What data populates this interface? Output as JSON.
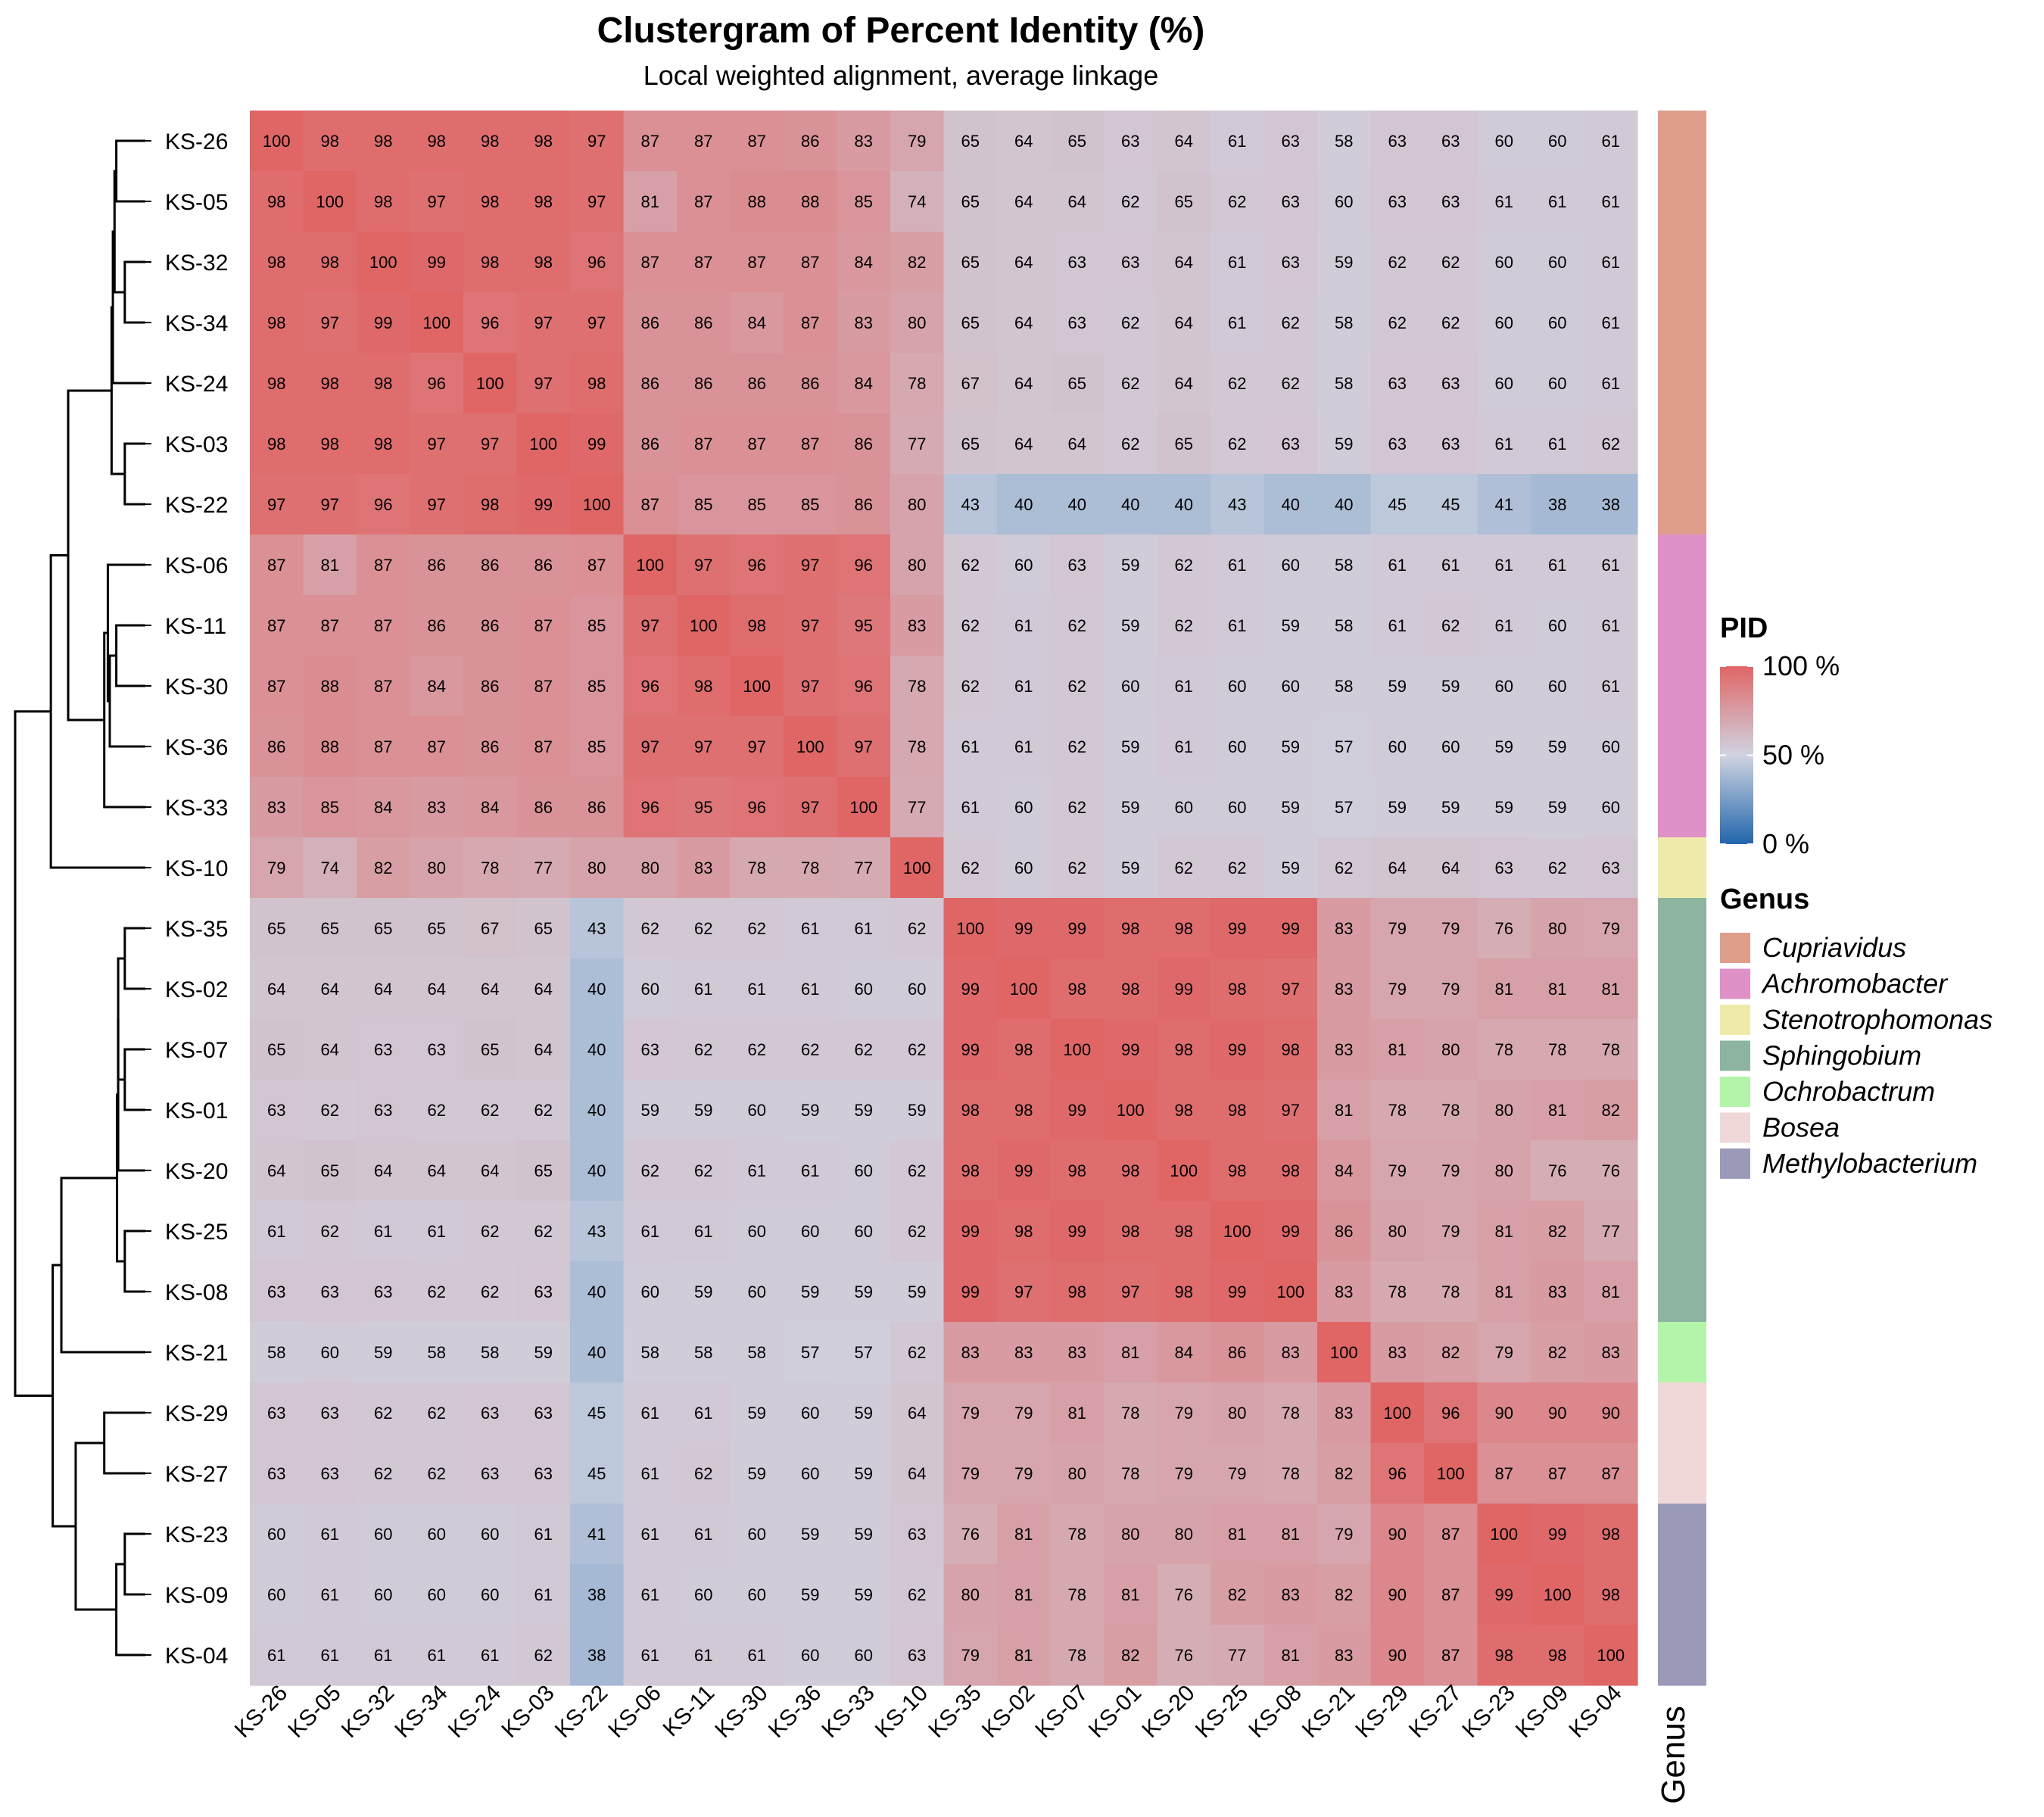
{
  "chart_data": {
    "type": "heatmap",
    "title": "Clustergram of Percent Identity (%)",
    "subtitle": "Local weighted alignment, average linkage",
    "labels": [
      "KS-26",
      "KS-05",
      "KS-32",
      "KS-34",
      "KS-24",
      "KS-03",
      "KS-22",
      "KS-06",
      "KS-11",
      "KS-30",
      "KS-36",
      "KS-33",
      "KS-10",
      "KS-35",
      "KS-02",
      "KS-07",
      "KS-01",
      "KS-20",
      "KS-25",
      "KS-08",
      "KS-21",
      "KS-29",
      "KS-27",
      "KS-23",
      "KS-09",
      "KS-04"
    ],
    "values": [
      [
        100,
        98,
        98,
        98,
        98,
        98,
        97,
        87,
        87,
        87,
        86,
        83,
        79,
        65,
        64,
        65,
        63,
        64,
        61,
        63,
        58,
        63,
        63,
        60,
        60,
        61
      ],
      [
        98,
        100,
        98,
        97,
        98,
        98,
        97,
        81,
        87,
        88,
        88,
        85,
        74,
        65,
        64,
        64,
        62,
        65,
        62,
        63,
        60,
        63,
        63,
        61,
        61,
        61
      ],
      [
        98,
        98,
        100,
        99,
        98,
        98,
        96,
        87,
        87,
        87,
        87,
        84,
        82,
        65,
        64,
        63,
        63,
        64,
        61,
        63,
        59,
        62,
        62,
        60,
        60,
        61
      ],
      [
        98,
        97,
        99,
        100,
        96,
        97,
        97,
        86,
        86,
        84,
        87,
        83,
        80,
        65,
        64,
        63,
        62,
        64,
        61,
        62,
        58,
        62,
        62,
        60,
        60,
        61
      ],
      [
        98,
        98,
        98,
        96,
        100,
        97,
        98,
        86,
        86,
        86,
        86,
        84,
        78,
        67,
        64,
        65,
        62,
        64,
        62,
        62,
        58,
        63,
        63,
        60,
        60,
        61
      ],
      [
        98,
        98,
        98,
        97,
        97,
        100,
        99,
        86,
        87,
        87,
        87,
        86,
        77,
        65,
        64,
        64,
        62,
        65,
        62,
        63,
        59,
        63,
        63,
        61,
        61,
        62
      ],
      [
        97,
        97,
        96,
        97,
        98,
        99,
        100,
        87,
        85,
        85,
        85,
        86,
        80,
        43,
        40,
        40,
        40,
        40,
        43,
        40,
        40,
        45,
        45,
        41,
        38,
        38
      ],
      [
        87,
        81,
        87,
        86,
        86,
        86,
        87,
        100,
        97,
        96,
        97,
        96,
        80,
        62,
        60,
        63,
        59,
        62,
        61,
        60,
        58,
        61,
        61,
        61,
        61,
        61
      ],
      [
        87,
        87,
        87,
        86,
        86,
        87,
        85,
        97,
        100,
        98,
        97,
        95,
        83,
        62,
        61,
        62,
        59,
        62,
        61,
        59,
        58,
        61,
        62,
        61,
        60,
        61
      ],
      [
        87,
        88,
        87,
        84,
        86,
        87,
        85,
        96,
        98,
        100,
        97,
        96,
        78,
        62,
        61,
        62,
        60,
        61,
        60,
        60,
        58,
        59,
        59,
        60,
        60,
        61
      ],
      [
        86,
        88,
        87,
        87,
        86,
        87,
        85,
        97,
        97,
        97,
        100,
        97,
        78,
        61,
        61,
        62,
        59,
        61,
        60,
        59,
        57,
        60,
        60,
        59,
        59,
        60
      ],
      [
        83,
        85,
        84,
        83,
        84,
        86,
        86,
        96,
        95,
        96,
        97,
        100,
        77,
        61,
        60,
        62,
        59,
        60,
        60,
        59,
        57,
        59,
        59,
        59,
        59,
        60
      ],
      [
        79,
        74,
        82,
        80,
        78,
        77,
        80,
        80,
        83,
        78,
        78,
        77,
        100,
        62,
        60,
        62,
        59,
        62,
        62,
        59,
        62,
        64,
        64,
        63,
        62,
        63
      ],
      [
        65,
        65,
        65,
        65,
        67,
        65,
        43,
        62,
        62,
        62,
        61,
        61,
        62,
        100,
        99,
        99,
        98,
        98,
        99,
        99,
        83,
        79,
        79,
        76,
        80,
        79
      ],
      [
        64,
        64,
        64,
        64,
        64,
        64,
        40,
        60,
        61,
        61,
        61,
        60,
        60,
        99,
        100,
        98,
        98,
        99,
        98,
        97,
        83,
        79,
        79,
        81,
        81,
        81
      ],
      [
        65,
        64,
        63,
        63,
        65,
        64,
        40,
        63,
        62,
        62,
        62,
        62,
        62,
        99,
        98,
        100,
        99,
        98,
        99,
        98,
        83,
        81,
        80,
        78,
        78,
        78
      ],
      [
        63,
        62,
        63,
        62,
        62,
        62,
        40,
        59,
        59,
        60,
        59,
        59,
        59,
        98,
        98,
        99,
        100,
        98,
        98,
        97,
        81,
        78,
        78,
        80,
        81,
        82
      ],
      [
        64,
        65,
        64,
        64,
        64,
        65,
        40,
        62,
        62,
        61,
        61,
        60,
        62,
        98,
        99,
        98,
        98,
        100,
        98,
        98,
        84,
        79,
        79,
        80,
        76,
        76
      ],
      [
        61,
        62,
        61,
        61,
        62,
        62,
        43,
        61,
        61,
        60,
        60,
        60,
        62,
        99,
        98,
        99,
        98,
        98,
        100,
        99,
        86,
        80,
        79,
        81,
        82,
        77
      ],
      [
        63,
        63,
        63,
        62,
        62,
        63,
        40,
        60,
        59,
        60,
        59,
        59,
        59,
        99,
        97,
        98,
        97,
        98,
        99,
        100,
        83,
        78,
        78,
        81,
        83,
        81
      ],
      [
        58,
        60,
        59,
        58,
        58,
        59,
        40,
        58,
        58,
        58,
        57,
        57,
        62,
        83,
        83,
        83,
        81,
        84,
        86,
        83,
        100,
        83,
        82,
        79,
        82,
        83
      ],
      [
        63,
        63,
        62,
        62,
        63,
        63,
        45,
        61,
        61,
        59,
        60,
        59,
        64,
        79,
        79,
        81,
        78,
        79,
        80,
        78,
        83,
        100,
        96,
        90,
        90,
        90
      ],
      [
        63,
        63,
        62,
        62,
        63,
        63,
        45,
        61,
        62,
        59,
        60,
        59,
        64,
        79,
        79,
        80,
        78,
        79,
        79,
        78,
        82,
        96,
        100,
        87,
        87,
        87
      ],
      [
        60,
        61,
        60,
        60,
        60,
        61,
        41,
        61,
        61,
        60,
        59,
        59,
        63,
        76,
        81,
        78,
        80,
        80,
        81,
        81,
        79,
        90,
        87,
        100,
        99,
        98
      ],
      [
        60,
        61,
        60,
        60,
        60,
        61,
        38,
        61,
        60,
        60,
        59,
        59,
        62,
        80,
        81,
        78,
        81,
        76,
        82,
        83,
        82,
        90,
        87,
        99,
        100,
        98
      ],
      [
        61,
        61,
        61,
        61,
        61,
        62,
        38,
        61,
        61,
        61,
        60,
        60,
        63,
        79,
        81,
        78,
        82,
        76,
        77,
        81,
        83,
        90,
        87,
        98,
        98,
        100
      ]
    ],
    "genus_annotation": [
      "Cupriavidus",
      "Cupriavidus",
      "Cupriavidus",
      "Cupriavidus",
      "Cupriavidus",
      "Cupriavidus",
      "Cupriavidus",
      "Achromobacter",
      "Achromobacter",
      "Achromobacter",
      "Achromobacter",
      "Achromobacter",
      "Stenotrophomonas",
      "Sphingobium",
      "Sphingobium",
      "Sphingobium",
      "Sphingobium",
      "Sphingobium",
      "Sphingobium",
      "Sphingobium",
      "Ochrobactrum",
      "Bosea",
      "Bosea",
      "Methylobacterium",
      "Methylobacterium",
      "Methylobacterium"
    ],
    "colorscale": {
      "title": "PID",
      "low": "#2166ac",
      "mid": "#cfd3e0",
      "high": "#e06666",
      "ticks": [
        "100 %",
        "50 %",
        "0 %"
      ],
      "tick_values": [
        100,
        50,
        0
      ]
    },
    "genus_legend": {
      "title": "Genus",
      "items": [
        {
          "name": "Cupriavidus",
          "color": "#df9e8c"
        },
        {
          "name": "Achromobacter",
          "color": "#df90c6"
        },
        {
          "name": "Stenotrophomonas",
          "color": "#f0eaaa"
        },
        {
          "name": "Sphingobium",
          "color": "#8cb4a0"
        },
        {
          "name": "Ochrobactrum",
          "color": "#b4f4aa"
        },
        {
          "name": "Bosea",
          "color": "#f0d8d8"
        },
        {
          "name": "Methylobacterium",
          "color": "#9a9ab8"
        }
      ]
    },
    "genus_axis_label": "Genus",
    "dendrogram": "average linkage"
  }
}
